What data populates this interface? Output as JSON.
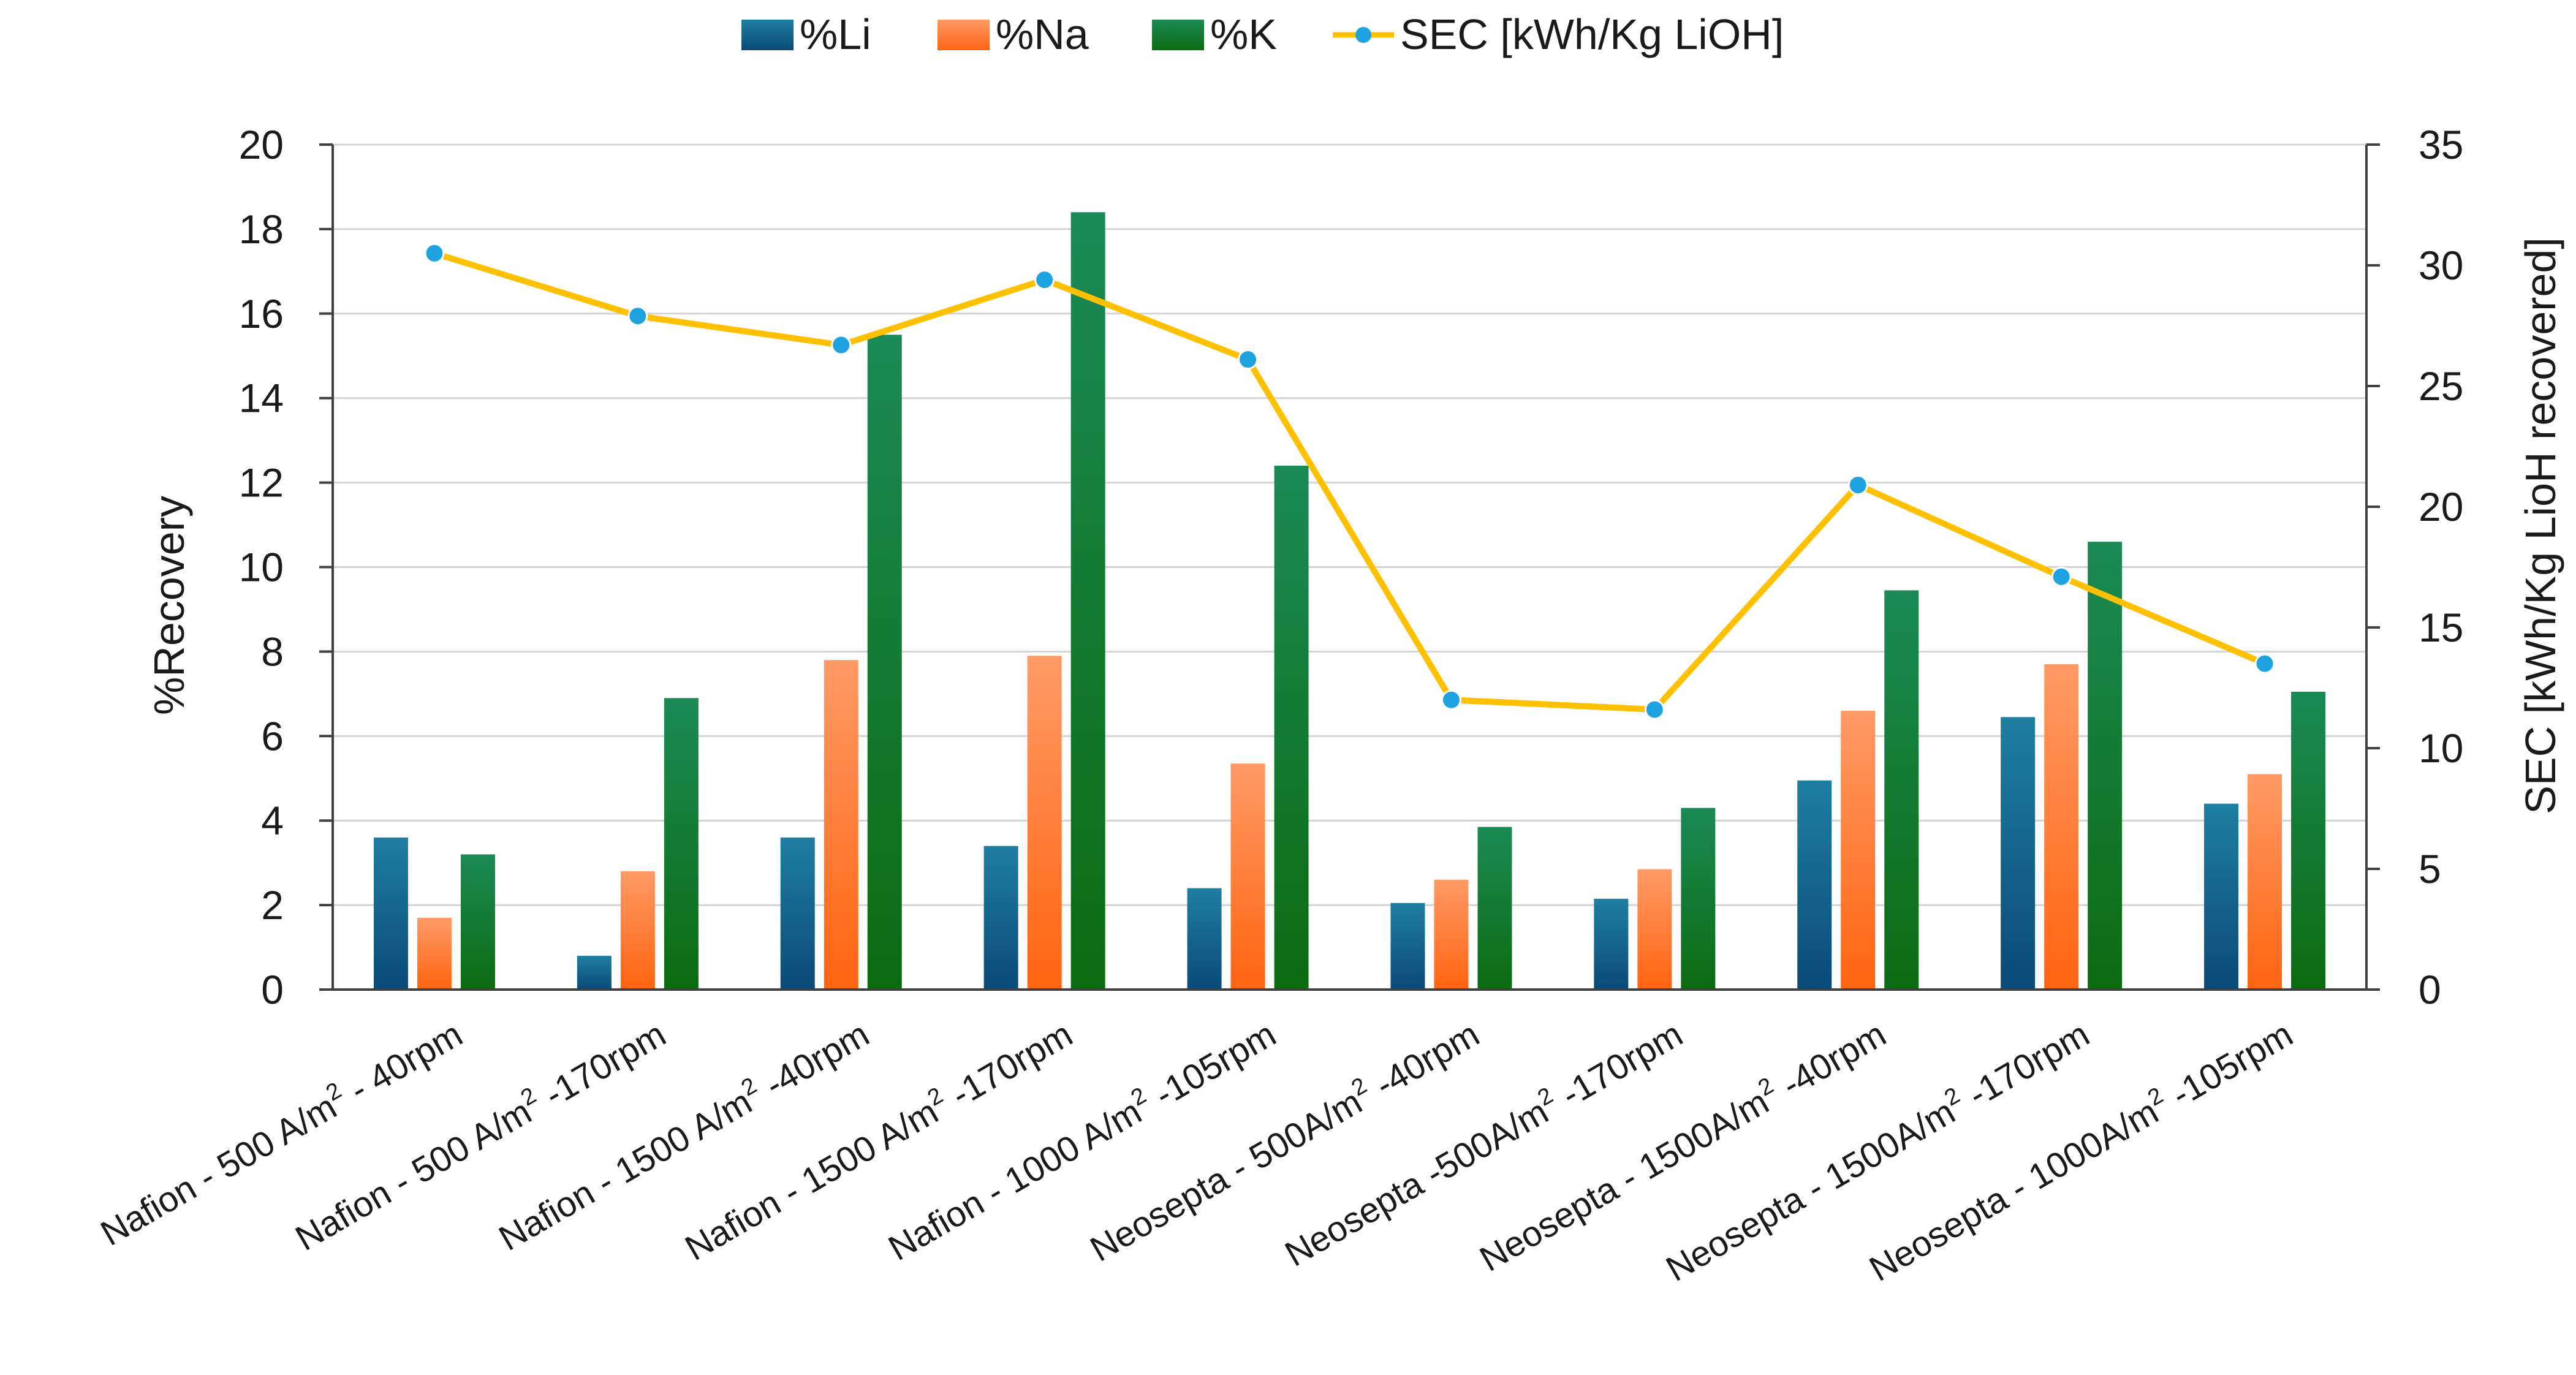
{
  "chart_data": {
    "type": "bar",
    "categories": [
      {
        "text": "Nafion -  500 A/m",
        "sup": "2",
        "tail": " - 40rpm"
      },
      {
        "text": "Nafion - 500 A/m",
        "sup": "2",
        "tail": " -170rpm"
      },
      {
        "text": "Nafion - 1500 A/m",
        "sup": "2",
        "tail": " -40rpm"
      },
      {
        "text": "Nafion - 1500 A/m",
        "sup": "2",
        "tail": " -170rpm"
      },
      {
        "text": "Nafion - 1000 A/m",
        "sup": "2",
        "tail": " -105rpm"
      },
      {
        "text": "Neosepta - 500A/m",
        "sup": "2",
        "tail": " -40rpm"
      },
      {
        "text": "Neosepta -500A/m",
        "sup": "2",
        "tail": " -170rpm"
      },
      {
        "text": "Neosepta - 1500A/m",
        "sup": "2",
        "tail": " -40rpm"
      },
      {
        "text": "Neosepta - 1500A/m",
        "sup": "2",
        "tail": " -170rpm"
      },
      {
        "text": "Neosepta - 1000A/m",
        "sup": "2",
        "tail": " -105rpm"
      }
    ],
    "series": [
      {
        "name": "%Li",
        "axis": "left",
        "kind": "bar",
        "values": [
          3.6,
          0.8,
          3.6,
          3.4,
          2.4,
          2.05,
          2.15,
          4.95,
          6.45,
          4.4
        ]
      },
      {
        "name": "%Na",
        "axis": "left",
        "kind": "bar",
        "values": [
          1.7,
          2.8,
          7.8,
          7.9,
          5.35,
          2.6,
          2.85,
          6.6,
          7.7,
          5.1
        ]
      },
      {
        "name": "%K",
        "axis": "left",
        "kind": "bar",
        "values": [
          3.2,
          6.9,
          15.5,
          18.4,
          12.4,
          3.85,
          4.3,
          9.45,
          10.6,
          7.05
        ]
      },
      {
        "name": "SEC [kWh/Kg LiOH]",
        "axis": "right",
        "kind": "line",
        "values": [
          30.5,
          27.9,
          26.7,
          29.4,
          26.1,
          12.0,
          11.6,
          20.9,
          17.1,
          13.5
        ]
      }
    ],
    "ylabel": "%Recovery",
    "y2label": "SEC [kWh/Kg LioH recovered]",
    "ylim": [
      0,
      20
    ],
    "y2lim": [
      0,
      35
    ],
    "yticks": [
      0,
      2,
      4,
      6,
      8,
      10,
      12,
      14,
      16,
      18,
      20
    ],
    "y2ticks": [
      0,
      5,
      10,
      15,
      20,
      25,
      30,
      35
    ],
    "grid": true,
    "legend": "top-center",
    "colors": {
      "Li_top": "#1f7ea1",
      "Li_bottom": "#0a4a78",
      "Na_top": "#ff9a66",
      "Na_bottom": "#ff6410",
      "K_top": "#1c8a56",
      "K_bottom": "#0b6b10",
      "line": "#ffc000",
      "marker": "#1ea3e0"
    }
  }
}
